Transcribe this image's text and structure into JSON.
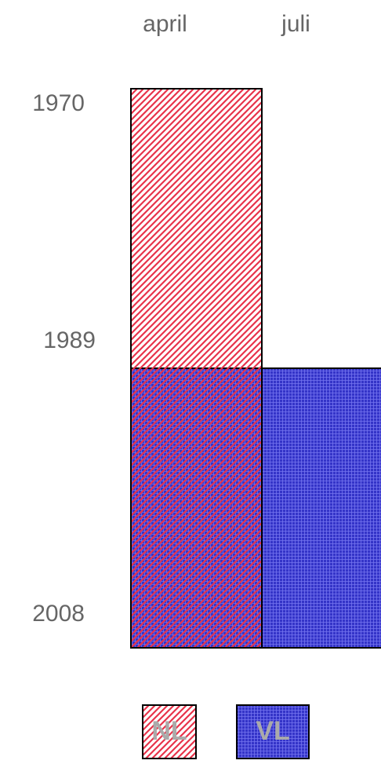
{
  "chart_data": {
    "type": "range",
    "categories": [
      "april",
      "juli"
    ],
    "ylim": [
      1970,
      2008
    ],
    "yticks": [
      1970,
      1989,
      2008
    ],
    "y_inverted": true,
    "series": [
      {
        "name": "NL",
        "color": "#e8334a",
        "pattern": "diagonal",
        "values": [
          [
            1970,
            2008
          ],
          null
        ]
      },
      {
        "name": "VL",
        "color": "#3434c8",
        "pattern": "grid",
        "values": [
          [
            1989,
            2008
          ],
          [
            1989,
            2008
          ]
        ]
      }
    ]
  }
}
